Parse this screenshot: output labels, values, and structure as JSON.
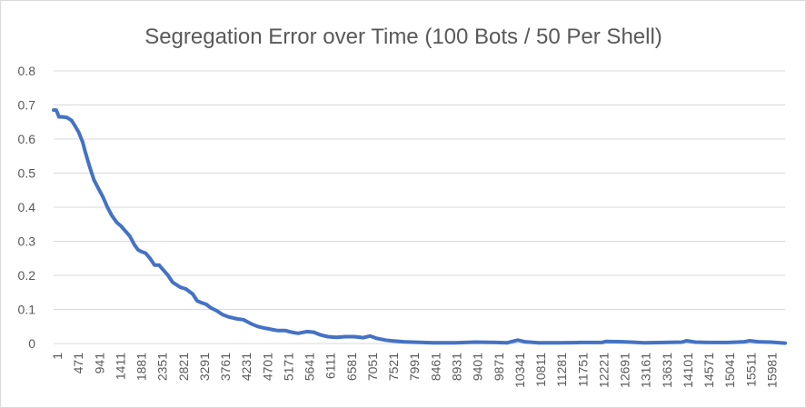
{
  "chart_data": {
    "type": "line",
    "title": "Segregation Error over Time (100 Bots / 50 Per Shell)",
    "xlabel": "",
    "ylabel": "",
    "ylim": [
      0,
      0.8
    ],
    "y_ticks": [
      "0",
      "0.1",
      "0.2",
      "0.3",
      "0.4",
      "0.5",
      "0.6",
      "0.7",
      "0.8"
    ],
    "x_ticks": [
      "1",
      "471",
      "941",
      "1411",
      "1881",
      "2351",
      "2821",
      "3291",
      "3761",
      "4231",
      "4701",
      "5171",
      "5641",
      "6111",
      "6581",
      "7051",
      "7521",
      "7991",
      "8461",
      "8931",
      "9401",
      "9871",
      "10341",
      "10811",
      "11281",
      "11751",
      "12221",
      "12691",
      "13161",
      "13631",
      "14101",
      "14571",
      "15041",
      "15511",
      "15981"
    ],
    "xlim": [
      1,
      16300
    ],
    "grid": true,
    "legend": "none",
    "series": [
      {
        "color": "#4472c4",
        "x": [
          1,
          60,
          120,
          200,
          300,
          400,
          471,
          560,
          650,
          700,
          800,
          900,
          941,
          1000,
          1100,
          1200,
          1300,
          1411,
          1500,
          1600,
          1700,
          1800,
          1881,
          1950,
          2050,
          2150,
          2250,
          2351,
          2450,
          2550,
          2650,
          2821,
          2950,
          3100,
          3200,
          3291,
          3400,
          3500,
          3650,
          3761,
          3900,
          4000,
          4100,
          4231,
          4300,
          4400,
          4550,
          4701,
          4800,
          4900,
          5000,
          5171,
          5250,
          5350,
          5450,
          5641,
          5800,
          5950,
          6111,
          6300,
          6500,
          6700,
          6900,
          7051,
          7200,
          7400,
          7521,
          7800,
          7991,
          8461,
          8931,
          9401,
          9871,
          10100,
          10341,
          10500,
          10811,
          11281,
          11751,
          12221,
          12300,
          12691,
          13161,
          13631,
          14000,
          14101,
          14300,
          14571,
          15041,
          15400,
          15511,
          15700,
          15981,
          16300
        ],
        "y": [
          0.685,
          0.685,
          0.665,
          0.665,
          0.663,
          0.655,
          0.64,
          0.62,
          0.59,
          0.565,
          0.52,
          0.48,
          0.47,
          0.455,
          0.43,
          0.4,
          0.375,
          0.355,
          0.345,
          0.33,
          0.315,
          0.29,
          0.275,
          0.27,
          0.265,
          0.25,
          0.23,
          0.23,
          0.215,
          0.2,
          0.18,
          0.165,
          0.16,
          0.145,
          0.125,
          0.12,
          0.115,
          0.105,
          0.095,
          0.085,
          0.078,
          0.075,
          0.072,
          0.07,
          0.065,
          0.058,
          0.05,
          0.045,
          0.043,
          0.04,
          0.038,
          0.038,
          0.035,
          0.032,
          0.03,
          0.035,
          0.033,
          0.025,
          0.02,
          0.018,
          0.02,
          0.02,
          0.017,
          0.022,
          0.015,
          0.01,
          0.008,
          0.005,
          0.004,
          0.002,
          0.002,
          0.004,
          0.003,
          0.002,
          0.01,
          0.005,
          0.002,
          0.002,
          0.003,
          0.003,
          0.006,
          0.005,
          0.002,
          0.003,
          0.004,
          0.008,
          0.004,
          0.003,
          0.003,
          0.005,
          0.008,
          0.005,
          0.004,
          0.001
        ]
      }
    ]
  }
}
